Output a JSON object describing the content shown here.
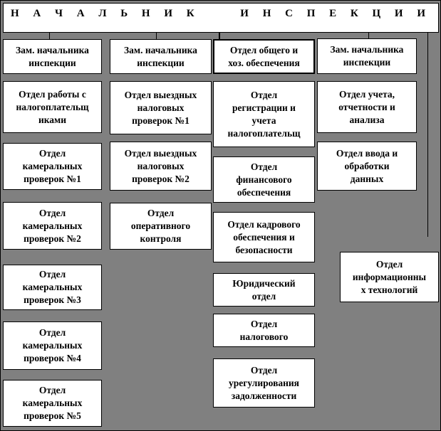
{
  "colors": {
    "background": "#808080",
    "box_fill": "#ffffff",
    "border": "#000000",
    "text": "#000000"
  },
  "header": {
    "word1": "Н А Ч А Л Ь Н И К",
    "word2": "И Н С П Е К Ц И И"
  },
  "boxes": [
    {
      "lines": [
        "Зам. начальника",
        "инспекции"
      ]
    },
    {
      "lines": [
        "Отдел работы с",
        "налогоплательщ",
        "иками"
      ]
    },
    {
      "lines": [
        "Отдел",
        "камеральных",
        "проверок №1"
      ]
    },
    {
      "lines": [
        "Отдел",
        "камеральных",
        "проверок №2"
      ]
    },
    {
      "lines": [
        "Отдел",
        "камеральных",
        "проверок №3"
      ]
    },
    {
      "lines": [
        "Отдел",
        "камеральных",
        "проверок №4"
      ]
    },
    {
      "lines": [
        "Отдел",
        "камеральных",
        "проверок №5"
      ]
    },
    {
      "lines": [
        "Зам. начальника",
        "инспекции"
      ]
    },
    {
      "lines": [
        "Отдел выездных",
        "налоговых",
        "проверок №1"
      ]
    },
    {
      "lines": [
        "Отдел выездных",
        "налоговых",
        "проверок №2"
      ]
    },
    {
      "lines": [
        "Отдел",
        "оперативного",
        "контроля"
      ]
    },
    {
      "lines": [
        "Отдел общего и",
        "хоз. обеспечения"
      ]
    },
    {
      "lines": [
        "Отдел",
        "регистрации и",
        "учета",
        "налогоплательщ"
      ]
    },
    {
      "lines": [
        "Отдел",
        "финансового",
        "обеспечения"
      ]
    },
    {
      "lines": [
        "Отдел кадрового",
        "обеспечения и",
        "безопасности"
      ]
    },
    {
      "lines": [
        "Юридический",
        "отдел"
      ]
    },
    {
      "lines": [
        "Отдел",
        "налогового"
      ]
    },
    {
      "lines": [
        "Отдел",
        "урегулирования",
        "задолженности"
      ]
    },
    {
      "lines": [
        "Зам. начальника",
        "инспекции"
      ]
    },
    {
      "lines": [
        "Отдел учета,",
        "отчетности и",
        "анализа"
      ]
    },
    {
      "lines": [
        "Отдел ввода и",
        "обработки",
        "данных"
      ]
    },
    {
      "lines": [
        "Отдел",
        "информационны",
        "х технологий"
      ]
    }
  ]
}
